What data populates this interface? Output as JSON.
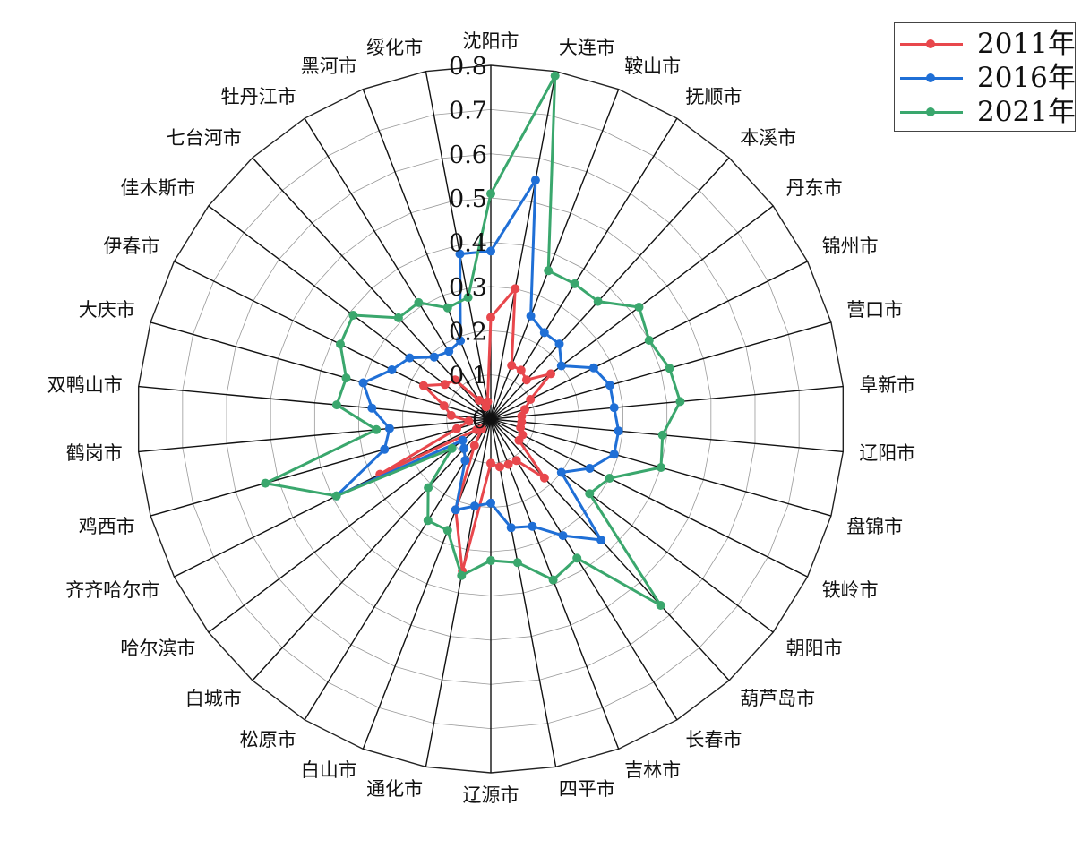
{
  "chart_data": {
    "type": "radar",
    "title": "",
    "rlim": [
      0,
      0.8
    ],
    "r_ticks": [
      "0",
      "0.1",
      "0.2",
      "0.3",
      "0.4",
      "0.5",
      "0.6",
      "0.7",
      "0.8"
    ],
    "r_tick_values": [
      0,
      0.1,
      0.2,
      0.3,
      0.4,
      0.5,
      0.6,
      0.7,
      0.8
    ],
    "legend_position": "top-right",
    "grid": true,
    "categories": [
      "沈阳市",
      "大连市",
      "鞍山市",
      "抚顺市",
      "本溪市",
      "丹东市",
      "锦州市",
      "营口市",
      "阜新市",
      "辽阳市",
      "盘锦市",
      "铁岭市",
      "朝阳市",
      "葫芦岛市",
      "长春市",
      "吉林市",
      "四平市",
      "辽源市",
      "通化市",
      "白山市",
      "松原市",
      "白城市",
      "哈尔滨市",
      "齐齐哈尔市",
      "鸡西市",
      "鹤岗市",
      "双鸭山市",
      "大庆市",
      "伊春市",
      "佳木斯市",
      "七台河市",
      "牡丹江市",
      "黑河市",
      "绥化市"
    ],
    "series": [
      {
        "name": "2011年",
        "color": "#e8474c",
        "values": [
          0.23,
          0.3,
          0.13,
          0.13,
          0.12,
          0.17,
          0.1,
          0.08,
          0.07,
          0.07,
          0.07,
          0.08,
          0.08,
          0.18,
          0.11,
          0.11,
          0.11,
          0.1,
          0.35,
          0.22,
          0.07,
          0.03,
          0.04,
          0.28,
          0.08,
          0.05,
          0.09,
          0.11,
          0.17,
          0.13,
          0.12,
          0.05,
          0.03,
          0.04
        ]
      },
      {
        "name": "2016年",
        "color": "#1f6fd6",
        "values": [
          0.38,
          0.55,
          0.25,
          0.23,
          0.23,
          0.2,
          0.26,
          0.28,
          0.28,
          0.29,
          0.29,
          0.25,
          0.2,
          0.37,
          0.31,
          0.26,
          0.25,
          0.19,
          0.2,
          0.22,
          0.11,
          0.09,
          0.08,
          0.39,
          0.25,
          0.23,
          0.27,
          0.3,
          0.25,
          0.23,
          0.19,
          0.18,
          0.19,
          0.38
        ]
      },
      {
        "name": "2021年",
        "color": "#3aa76d",
        "values": [
          0.51,
          0.79,
          0.36,
          0.36,
          0.36,
          0.42,
          0.4,
          0.42,
          0.43,
          0.39,
          0.4,
          0.3,
          0.28,
          0.57,
          0.37,
          0.39,
          0.33,
          0.32,
          0.36,
          0.27,
          0.27,
          0.21,
          0.11,
          0.39,
          0.53,
          0.26,
          0.35,
          0.34,
          0.38,
          0.39,
          0.31,
          0.31,
          0.27,
          0.28
        ]
      }
    ]
  }
}
